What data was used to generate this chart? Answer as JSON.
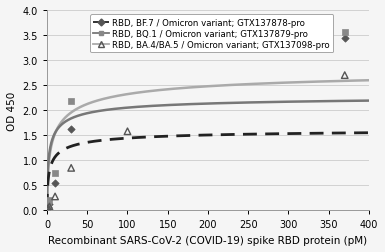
{
  "title": "",
  "xlabel": "Recombinant SARS-CoV-2 (COVID-19) spike RBD protein (pM)",
  "ylabel": "OD 450",
  "xlim": [
    0,
    400
  ],
  "ylim": [
    0,
    4
  ],
  "yticks": [
    0,
    0.5,
    1.0,
    1.5,
    2.0,
    2.5,
    3.0,
    3.5,
    4.0
  ],
  "xticks": [
    0,
    50,
    100,
    150,
    200,
    250,
    300,
    350,
    400
  ],
  "series": [
    {
      "label": "RBD, BF.7 / Omicron variant; GTX137878-pro",
      "marker": "o",
      "marker_color": "#555555",
      "line_style": "--",
      "line_color": "#222222",
      "data_x": [
        0.5,
        1.5,
        3,
        10,
        30,
        370
      ],
      "data_y": [
        0.04,
        0.06,
        0.12,
        0.55,
        1.62,
        3.45
      ],
      "Vmax": 1.65,
      "Km": 3.5,
      "n": 0.58
    },
    {
      "label": "RBD, BQ.1 / Omicron variant; GTX137879-pro",
      "marker": "s",
      "marker_color": "#888888",
      "line_style": "-",
      "line_color": "#777777",
      "data_x": [
        0.5,
        1.5,
        3,
        10,
        30,
        370
      ],
      "data_y": [
        0.05,
        0.08,
        0.2,
        0.75,
        2.18,
        3.56
      ],
      "Vmax": 2.32,
      "Km": 3.0,
      "n": 0.58
    },
    {
      "label": "RBD, BA.4/BA.5 / Omicron variant; GTX137098-pro",
      "marker": "^",
      "marker_color": "#555555",
      "line_style": "-",
      "line_color": "#aaaaaa",
      "data_x": [
        0.5,
        1.5,
        3,
        10,
        30,
        100,
        370
      ],
      "data_y": [
        0.03,
        0.05,
        0.08,
        0.28,
        0.85,
        1.58,
        2.7
      ],
      "Vmax": 2.9,
      "Km": 8.0,
      "n": 0.55
    }
  ],
  "legend_fontsize": 6.2,
  "axis_fontsize": 7.5,
  "tick_fontsize": 7,
  "background_color": "#f5f5f5",
  "grid_color": "#cccccc"
}
